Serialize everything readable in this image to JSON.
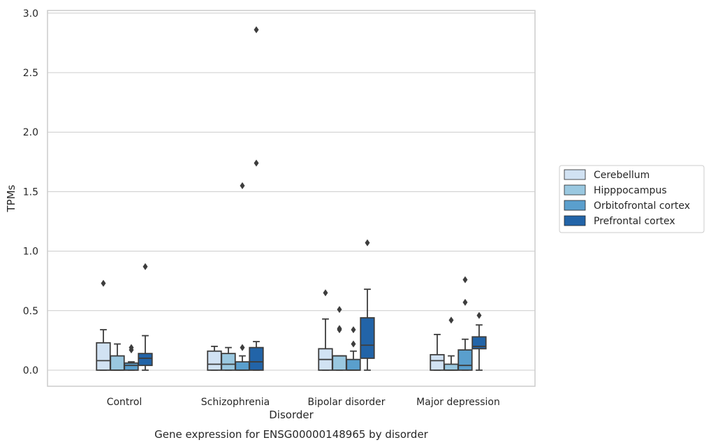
{
  "chart_data": {
    "type": "box",
    "caption": "Gene expression for ENSG00000148965 by disorder",
    "xlabel": "Disorder",
    "ylabel": "TPMs",
    "ylim": [
      -0.14,
      3.0
    ],
    "yticks": [
      0.0,
      0.5,
      1.0,
      1.5,
      2.0,
      2.5,
      3.0
    ],
    "ytick_labels": [
      "0.0",
      "0.5",
      "1.0",
      "1.5",
      "2.0",
      "2.5",
      "3.0"
    ],
    "grid": "horizontal",
    "legend_position": "right",
    "categories": [
      "Control",
      "Schizophrenia",
      "Bipolar disorder",
      "Major depression"
    ],
    "series": [
      {
        "name": "Cerebellum",
        "color": "#d1e2f3",
        "boxes": [
          {
            "whisker_low": 0.0,
            "q1": 0.0,
            "median": 0.08,
            "q3": 0.23,
            "whisker_high": 0.34,
            "outliers": [
              0.73
            ]
          },
          {
            "whisker_low": 0.0,
            "q1": 0.0,
            "median": 0.05,
            "q3": 0.16,
            "whisker_high": 0.2,
            "outliers": []
          },
          {
            "whisker_low": 0.0,
            "q1": 0.0,
            "median": 0.09,
            "q3": 0.18,
            "whisker_high": 0.43,
            "outliers": [
              0.65
            ]
          },
          {
            "whisker_low": 0.0,
            "q1": 0.0,
            "median": 0.08,
            "q3": 0.13,
            "whisker_high": 0.3,
            "outliers": []
          }
        ]
      },
      {
        "name": "Hipppocampus",
        "color": "#9ac8e0",
        "boxes": [
          {
            "whisker_low": 0.0,
            "q1": 0.0,
            "median": 0.0,
            "q3": 0.12,
            "whisker_high": 0.22,
            "outliers": []
          },
          {
            "whisker_low": 0.0,
            "q1": 0.0,
            "median": 0.05,
            "q3": 0.14,
            "whisker_high": 0.19,
            "outliers": []
          },
          {
            "whisker_low": 0.0,
            "q1": 0.0,
            "median": 0.12,
            "q3": 0.12,
            "whisker_high": 0.12,
            "outliers": [
              0.34,
              0.35,
              0.51
            ]
          },
          {
            "whisker_low": 0.0,
            "q1": 0.0,
            "median": 0.0,
            "q3": 0.05,
            "whisker_high": 0.12,
            "outliers": [
              0.42
            ]
          }
        ]
      },
      {
        "name": "Orbitofrontal cortex",
        "color": "#5a9fcd",
        "boxes": [
          {
            "whisker_low": 0.0,
            "q1": 0.0,
            "median": 0.04,
            "q3": 0.06,
            "whisker_high": 0.07,
            "outliers": [
              0.17,
              0.19
            ]
          },
          {
            "whisker_low": 0.0,
            "q1": 0.0,
            "median": 0.0,
            "q3": 0.07,
            "whisker_high": 0.12,
            "outliers": [
              0.19,
              1.55
            ]
          },
          {
            "whisker_low": 0.0,
            "q1": 0.0,
            "median": 0.0,
            "q3": 0.09,
            "whisker_high": 0.16,
            "outliers": [
              0.22,
              0.34
            ]
          },
          {
            "whisker_low": 0.0,
            "q1": 0.0,
            "median": 0.04,
            "q3": 0.17,
            "whisker_high": 0.26,
            "outliers": [
              0.57,
              0.76
            ]
          }
        ]
      },
      {
        "name": "Prefrontal cortex",
        "color": "#2264a8",
        "boxes": [
          {
            "whisker_low": 0.0,
            "q1": 0.04,
            "median": 0.1,
            "q3": 0.14,
            "whisker_high": 0.29,
            "outliers": [
              0.87
            ]
          },
          {
            "whisker_low": 0.0,
            "q1": 0.0,
            "median": 0.07,
            "q3": 0.19,
            "whisker_high": 0.24,
            "outliers": [
              1.74,
              2.86
            ]
          },
          {
            "whisker_low": 0.0,
            "q1": 0.1,
            "median": 0.21,
            "q3": 0.44,
            "whisker_high": 0.68,
            "outliers": [
              1.07
            ]
          },
          {
            "whisker_low": 0.0,
            "q1": 0.18,
            "median": 0.2,
            "q3": 0.28,
            "whisker_high": 0.38,
            "outliers": [
              0.46
            ]
          }
        ]
      }
    ]
  }
}
